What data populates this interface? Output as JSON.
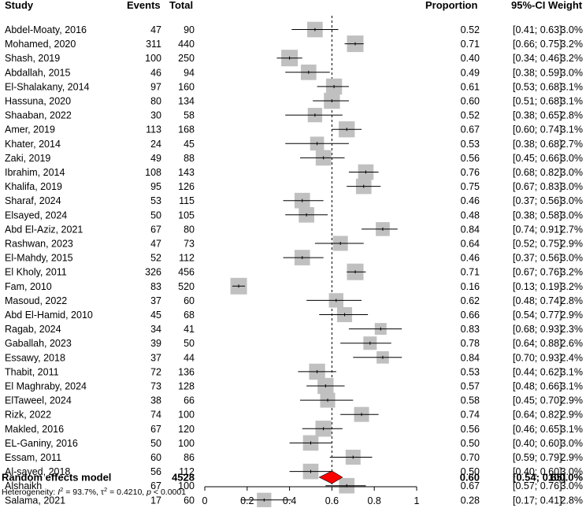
{
  "chart_data": {
    "type": "forest",
    "headers": {
      "study": "Study",
      "events": "Events",
      "total": "Total",
      "proportion": "Proportion",
      "ci": "95%-CI",
      "weight": "Weight"
    },
    "studies": [
      {
        "study": "Abdel-Moaty, 2016",
        "events": "47",
        "total": "90",
        "proportion": 0.52,
        "prop_text": "0.52",
        "lower": 0.41,
        "upper": 0.63,
        "ci_text": "[0.41; 0.63]",
        "weight": 3.0,
        "weight_text": "3.0%"
      },
      {
        "study": "Mohamed, 2020",
        "events": "311",
        "total": "440",
        "proportion": 0.71,
        "prop_text": "0.71",
        "lower": 0.66,
        "upper": 0.75,
        "ci_text": "[0.66; 0.75]",
        "weight": 3.2,
        "weight_text": "3.2%"
      },
      {
        "study": "Shash, 2019",
        "events": "100",
        "total": "250",
        "proportion": 0.4,
        "prop_text": "0.40",
        "lower": 0.34,
        "upper": 0.46,
        "ci_text": "[0.34; 0.46]",
        "weight": 3.2,
        "weight_text": "3.2%"
      },
      {
        "study": "Abdallah, 2015",
        "events": "46",
        "total": "94",
        "proportion": 0.49,
        "prop_text": "0.49",
        "lower": 0.38,
        "upper": 0.59,
        "ci_text": "[0.38; 0.59]",
        "weight": 3.0,
        "weight_text": "3.0%"
      },
      {
        "study": "El-Shalakany, 2014",
        "events": "97",
        "total": "160",
        "proportion": 0.61,
        "prop_text": "0.61",
        "lower": 0.53,
        "upper": 0.68,
        "ci_text": "[0.53; 0.68]",
        "weight": 3.1,
        "weight_text": "3.1%"
      },
      {
        "study": "Hassuna, 2020",
        "events": "80",
        "total": "134",
        "proportion": 0.6,
        "prop_text": "0.60",
        "lower": 0.51,
        "upper": 0.68,
        "ci_text": "[0.51; 0.68]",
        "weight": 3.1,
        "weight_text": "3.1%"
      },
      {
        "study": "Shaaban, 2022",
        "events": "30",
        "total": "58",
        "proportion": 0.52,
        "prop_text": "0.52",
        "lower": 0.38,
        "upper": 0.65,
        "ci_text": "[0.38; 0.65]",
        "weight": 2.8,
        "weight_text": "2.8%"
      },
      {
        "study": "Amer, 2019",
        "events": "113",
        "total": "168",
        "proportion": 0.67,
        "prop_text": "0.67",
        "lower": 0.6,
        "upper": 0.74,
        "ci_text": "[0.60; 0.74]",
        "weight": 3.1,
        "weight_text": "3.1%"
      },
      {
        "study": "Khater, 2014",
        "events": "24",
        "total": "45",
        "proportion": 0.53,
        "prop_text": "0.53",
        "lower": 0.38,
        "upper": 0.68,
        "ci_text": "[0.38; 0.68]",
        "weight": 2.7,
        "weight_text": "2.7%"
      },
      {
        "study": "Zaki, 2019",
        "events": "49",
        "total": "88",
        "proportion": 0.56,
        "prop_text": "0.56",
        "lower": 0.45,
        "upper": 0.66,
        "ci_text": "[0.45; 0.66]",
        "weight": 3.0,
        "weight_text": "3.0%"
      },
      {
        "study": "Ibrahim, 2014",
        "events": "108",
        "total": "143",
        "proportion": 0.76,
        "prop_text": "0.76",
        "lower": 0.68,
        "upper": 0.82,
        "ci_text": "[0.68; 0.82]",
        "weight": 3.0,
        "weight_text": "3.0%"
      },
      {
        "study": "Khalifa, 2019",
        "events": "95",
        "total": "126",
        "proportion": 0.75,
        "prop_text": "0.75",
        "lower": 0.67,
        "upper": 0.83,
        "ci_text": "[0.67; 0.83]",
        "weight": 3.0,
        "weight_text": "3.0%"
      },
      {
        "study": "Sharaf, 2024",
        "events": "53",
        "total": "115",
        "proportion": 0.46,
        "prop_text": "0.46",
        "lower": 0.37,
        "upper": 0.56,
        "ci_text": "[0.37; 0.56]",
        "weight": 3.0,
        "weight_text": "3.0%"
      },
      {
        "study": "Elsayed, 2024",
        "events": "50",
        "total": "105",
        "proportion": 0.48,
        "prop_text": "0.48",
        "lower": 0.38,
        "upper": 0.58,
        "ci_text": "[0.38; 0.58]",
        "weight": 3.0,
        "weight_text": "3.0%"
      },
      {
        "study": "Abd El-Aziz, 2021",
        "events": "67",
        "total": "80",
        "proportion": 0.84,
        "prop_text": "0.84",
        "lower": 0.74,
        "upper": 0.91,
        "ci_text": "[0.74; 0.91]",
        "weight": 2.7,
        "weight_text": "2.7%"
      },
      {
        "study": "Rashwan, 2023",
        "events": "47",
        "total": "73",
        "proportion": 0.64,
        "prop_text": "0.64",
        "lower": 0.52,
        "upper": 0.75,
        "ci_text": "[0.52; 0.75]",
        "weight": 2.9,
        "weight_text": "2.9%"
      },
      {
        "study": "El-Mahdy, 2015",
        "events": "52",
        "total": "112",
        "proportion": 0.46,
        "prop_text": "0.46",
        "lower": 0.37,
        "upper": 0.56,
        "ci_text": "[0.37; 0.56]",
        "weight": 3.0,
        "weight_text": "3.0%"
      },
      {
        "study": "El Kholy, 2011",
        "events": "326",
        "total": "456",
        "proportion": 0.71,
        "prop_text": "0.71",
        "lower": 0.67,
        "upper": 0.76,
        "ci_text": "[0.67; 0.76]",
        "weight": 3.2,
        "weight_text": "3.2%"
      },
      {
        "study": "Fam, 2010",
        "events": "83",
        "total": "520",
        "proportion": 0.16,
        "prop_text": "0.16",
        "lower": 0.13,
        "upper": 0.19,
        "ci_text": "[0.13; 0.19]",
        "weight": 3.2,
        "weight_text": "3.2%"
      },
      {
        "study": "Masoud, 2022",
        "events": "37",
        "total": "60",
        "proportion": 0.62,
        "prop_text": "0.62",
        "lower": 0.48,
        "upper": 0.74,
        "ci_text": "[0.48; 0.74]",
        "weight": 2.8,
        "weight_text": "2.8%"
      },
      {
        "study": "Abd El-Hamid, 2010",
        "events": "45",
        "total": "68",
        "proportion": 0.66,
        "prop_text": "0.66",
        "lower": 0.54,
        "upper": 0.77,
        "ci_text": "[0.54; 0.77]",
        "weight": 2.9,
        "weight_text": "2.9%"
      },
      {
        "study": "Ragab, 2024",
        "events": "34",
        "total": "41",
        "proportion": 0.83,
        "prop_text": "0.83",
        "lower": 0.68,
        "upper": 0.93,
        "ci_text": "[0.68; 0.93]",
        "weight": 2.3,
        "weight_text": "2.3%"
      },
      {
        "study": "Gaballah, 2023",
        "events": "39",
        "total": "50",
        "proportion": 0.78,
        "prop_text": "0.78",
        "lower": 0.64,
        "upper": 0.88,
        "ci_text": "[0.64; 0.88]",
        "weight": 2.6,
        "weight_text": "2.6%"
      },
      {
        "study": "Essawy, 2018",
        "events": "37",
        "total": "44",
        "proportion": 0.84,
        "prop_text": "0.84",
        "lower": 0.7,
        "upper": 0.93,
        "ci_text": "[0.70; 0.93]",
        "weight": 2.4,
        "weight_text": "2.4%"
      },
      {
        "study": "Thabit, 2011",
        "events": "72",
        "total": "136",
        "proportion": 0.53,
        "prop_text": "0.53",
        "lower": 0.44,
        "upper": 0.62,
        "ci_text": "[0.44; 0.62]",
        "weight": 3.1,
        "weight_text": "3.1%"
      },
      {
        "study": "El Maghraby, 2024",
        "events": "73",
        "total": "128",
        "proportion": 0.57,
        "prop_text": "0.57",
        "lower": 0.48,
        "upper": 0.66,
        "ci_text": "[0.48; 0.66]",
        "weight": 3.1,
        "weight_text": "3.1%"
      },
      {
        "study": "ElTaweel, 2024",
        "events": "38",
        "total": "66",
        "proportion": 0.58,
        "prop_text": "0.58",
        "lower": 0.45,
        "upper": 0.7,
        "ci_text": "[0.45; 0.70]",
        "weight": 2.9,
        "weight_text": "2.9%"
      },
      {
        "study": "Rizk, 2022",
        "events": "74",
        "total": "100",
        "proportion": 0.74,
        "prop_text": "0.74",
        "lower": 0.64,
        "upper": 0.82,
        "ci_text": "[0.64; 0.82]",
        "weight": 2.9,
        "weight_text": "2.9%"
      },
      {
        "study": "Makled, 2016",
        "events": "67",
        "total": "120",
        "proportion": 0.56,
        "prop_text": "0.56",
        "lower": 0.46,
        "upper": 0.65,
        "ci_text": "[0.46; 0.65]",
        "weight": 3.1,
        "weight_text": "3.1%"
      },
      {
        "study": "EL-Ganiny, 2016",
        "events": "50",
        "total": "100",
        "proportion": 0.5,
        "prop_text": "0.50",
        "lower": 0.4,
        "upper": 0.6,
        "ci_text": "[0.40; 0.60]",
        "weight": 3.0,
        "weight_text": "3.0%"
      },
      {
        "study": "Essam, 2011",
        "events": "60",
        "total": "86",
        "proportion": 0.7,
        "prop_text": "0.70",
        "lower": 0.59,
        "upper": 0.79,
        "ci_text": "[0.59; 0.79]",
        "weight": 2.9,
        "weight_text": "2.9%"
      },
      {
        "study": "Al-sayed, 2018",
        "events": "56",
        "total": "112",
        "proportion": 0.5,
        "prop_text": "0.50",
        "lower": 0.4,
        "upper": 0.6,
        "ci_text": "[0.40; 0.60]",
        "weight": 3.0,
        "weight_text": "3.0%"
      },
      {
        "study": "Alshaikh",
        "events": "67",
        "total": "100",
        "proportion": 0.67,
        "prop_text": "0.67",
        "lower": 0.57,
        "upper": 0.76,
        "ci_text": "[0.57; 0.76]",
        "weight": 3.0,
        "weight_text": "3.0%"
      },
      {
        "study": "Salama, 2021",
        "events": "17",
        "total": "60",
        "proportion": 0.28,
        "prop_text": "0.28",
        "lower": 0.17,
        "upper": 0.41,
        "ci_text": "[0.17; 0.41]",
        "weight": 2.8,
        "weight_text": "2.8%"
      }
    ],
    "pooled": {
      "label": "Random effects model",
      "total": "4528",
      "proportion": 0.6,
      "prop_text": "0.60",
      "lower": 0.54,
      "upper": 0.65,
      "ci_text": "[0.54; 0.65]",
      "weight_text": "100.0%"
    },
    "heterogeneity": {
      "prefix": "Heterogeneity: ",
      "i2_symbol": "I",
      "i2_value": " = 93.7%, ",
      "tau2_symbol": "τ",
      "tau2_value": " = 0.4210, ",
      "p_symbol": "p",
      "p_value": " < 0.0001"
    },
    "x_axis": {
      "range": [
        0,
        1
      ],
      "ticks": [
        0,
        0.2,
        0.4,
        0.6,
        0.8,
        1
      ],
      "tick_labels": [
        "0",
        "0.2",
        "0.4",
        "0.6",
        "0.8",
        "1"
      ]
    },
    "reference_line": 0.6,
    "colors": {
      "box": "#c0c0c0",
      "diamond": "#ff0000",
      "line": "#000000",
      "text": "#000000"
    }
  }
}
